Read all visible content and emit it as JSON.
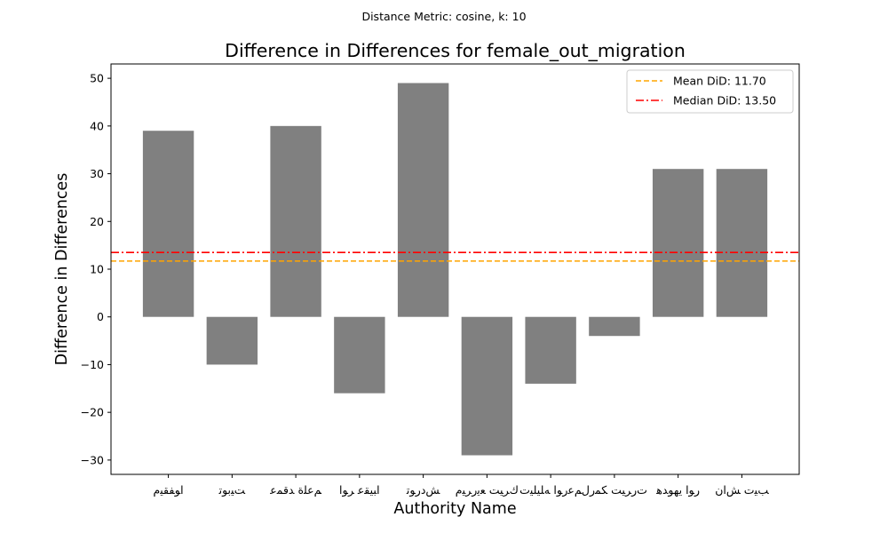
{
  "chart_data": {
    "type": "bar",
    "subtitle": "Distance Metric: cosine, k: 10",
    "title": "Difference in Differences for female_out_migration",
    "xlabel": "Authority Name",
    "ylabel": "Difference in Differences",
    "categories": [
      "ﺍﻮﻔﻘﻴﻡ",
      "ﺖﻴﺑﻮﺗ",
      "ﻢﻋﻠﺓ ﺪﻗﻤﻋ",
      "ﺍﺒﻴﻘﻋ ﺮﻮﺍ",
      "ﺶﺩﺭﻮﺗ",
      "ﻙﺮﻴﺖ ﻌﻳﺭﺮﻴﻡ",
      "ﻢﻋﺭﻮﺍ ﻪﻠﻴﻠﻴﺕ",
      "ﺕﺭﺮﻴﺖ ﻜﻤﺭﻝ",
      "ﺭﻮﺍ ﻳﻬﻮﺪﻫ",
      "ﺐﻴﺕ ﺶﺍﻥ"
    ],
    "values": [
      39,
      -10,
      40,
      -16,
      49,
      -29,
      -14,
      -4,
      31,
      31
    ],
    "bar_color": "#808080",
    "ylim": [
      -33,
      53
    ],
    "yticks": [
      -30,
      -20,
      -10,
      0,
      10,
      20,
      30,
      40,
      50
    ],
    "grid": false,
    "reference_lines": [
      {
        "label": "Mean DiD: 11.70",
        "value": 11.7,
        "color": "#FFA500",
        "style": "dashed"
      },
      {
        "label": "Median DiD: 13.50",
        "value": 13.5,
        "color": "#FF0000",
        "style": "dashdot"
      }
    ],
    "legend_position": "top-right"
  }
}
